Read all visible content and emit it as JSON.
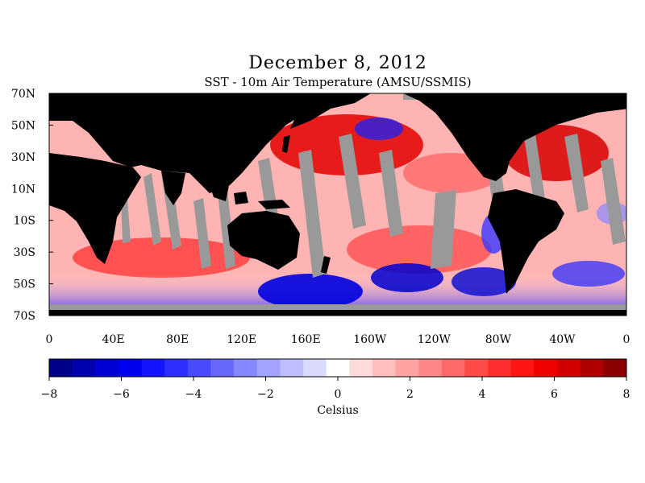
{
  "title": "December 8, 2012",
  "subtitle": "SST - 10m Air Temperature (AMSU/SSMIS)",
  "map": {
    "lat_labels": [
      "70N",
      "50N",
      "30N",
      "10N",
      "10S",
      "30S",
      "50S",
      "70S"
    ],
    "lon_labels": [
      "0",
      "40E",
      "80E",
      "120E",
      "160E",
      "160W",
      "120W",
      "80W",
      "40W",
      "0"
    ],
    "colors": {
      "land": "#000000",
      "no_data": "#999999"
    }
  },
  "colorbar": {
    "tick_labels": [
      "-8",
      "-6",
      "-4",
      "-2",
      "0",
      "2",
      "4",
      "6",
      "8"
    ],
    "label": "Celsius",
    "range": [
      -8,
      8
    ],
    "colors": [
      "#00008b",
      "#0000b0",
      "#0000d4",
      "#0000f0",
      "#1414ff",
      "#2e2eff",
      "#4a4aff",
      "#6868ff",
      "#8686ff",
      "#a2a2ff",
      "#bebeff",
      "#dadaff",
      "#ffffff",
      "#ffdada",
      "#ffbebe",
      "#ffa2a2",
      "#ff8686",
      "#ff6868",
      "#ff4a4a",
      "#ff2e2e",
      "#ff1414",
      "#f00000",
      "#d40000",
      "#b00000",
      "#8b0000"
    ]
  }
}
